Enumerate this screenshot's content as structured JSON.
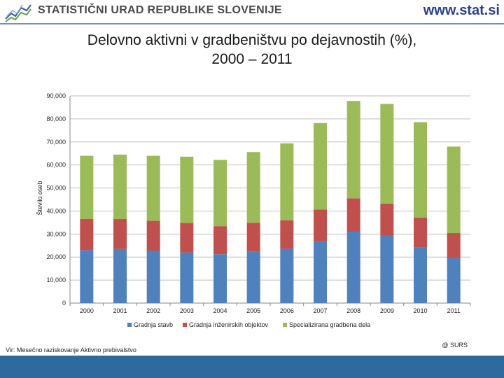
{
  "header": {
    "org_name": "STATISTIČNI URAD REPUBLIKE SLOVENIJE",
    "site_url": "www.stat.si",
    "logo_icon": "surs-logo-icon"
  },
  "footer": {
    "source": "Vir: Mesečno raziskovanje Aktivno prebivalstvo",
    "copyright": "@ SURS",
    "bar_color": "#2e6a9e"
  },
  "chart_data": {
    "type": "bar",
    "stacked": true,
    "title_line1": "Delovno aktivni v gradbeništvu po dejavnostih (%),",
    "title_line2": "2000 – 2011",
    "ylabel": "Število oseb",
    "ylim": [
      0,
      90000
    ],
    "yticks": [
      0,
      10000,
      20000,
      30000,
      40000,
      50000,
      60000,
      70000,
      80000,
      90000
    ],
    "ytick_labels": [
      "0",
      "10,000",
      "20,000",
      "30,000",
      "40,000",
      "50,000",
      "60,000",
      "70,000",
      "80,000",
      "90,000"
    ],
    "grid": true,
    "legend_position": "bottom",
    "categories": [
      "2000",
      "2001",
      "2002",
      "2003",
      "2004",
      "2005",
      "2006",
      "2007",
      "2008",
      "2009",
      "2010",
      "2011"
    ],
    "series": [
      {
        "name": "Gradnja stavb",
        "color": "#4f81bd",
        "values": [
          23000,
          23500,
          22800,
          22000,
          21200,
          22300,
          23600,
          26800,
          31000,
          29200,
          24300,
          19600
        ]
      },
      {
        "name": "Gradnja inženirskih objektov",
        "color": "#c0504d",
        "values": [
          13500,
          13000,
          13000,
          12800,
          12200,
          12600,
          12400,
          13800,
          14500,
          14000,
          12800,
          10800
        ]
      },
      {
        "name": "Specializirana gradbena dela",
        "color": "#9bbb59",
        "values": [
          27500,
          28000,
          28200,
          28800,
          28800,
          30700,
          33400,
          37600,
          42300,
          43300,
          41500,
          37600
        ]
      }
    ]
  }
}
